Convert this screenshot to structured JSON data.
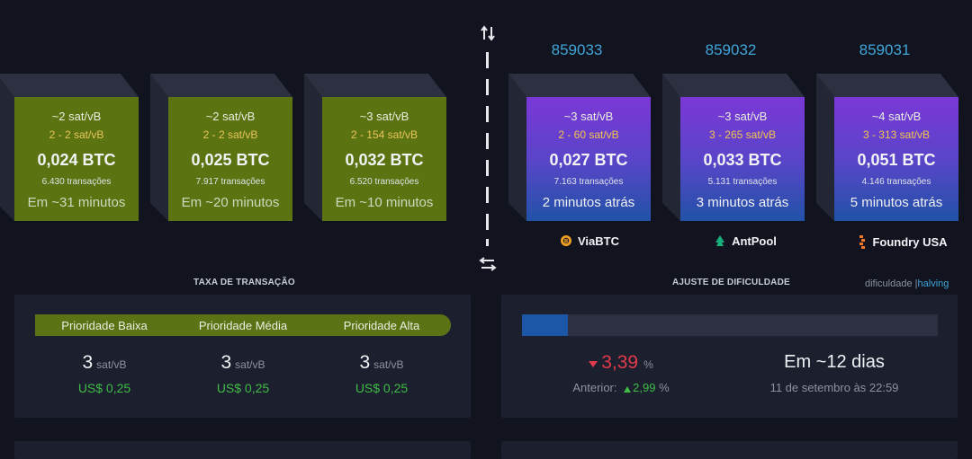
{
  "toolbar": {
    "swap_top_icon": "up-down-arrows-icon",
    "swap_bottom_icon": "left-right-arrows-icon"
  },
  "mempool_blocks": [
    {
      "fee_median": "~2 sat/vB",
      "fee_range": "2 - 2 sat/vB",
      "total": "0,024 BTC",
      "tx_count": "6.430 transações",
      "eta": "Em ~31 minutos"
    },
    {
      "fee_median": "~2 sat/vB",
      "fee_range": "2 - 2 sat/vB",
      "total": "0,025 BTC",
      "tx_count": "7.917 transações",
      "eta": "Em ~20 minutos"
    },
    {
      "fee_median": "~3 sat/vB",
      "fee_range": "2 - 154 sat/vB",
      "total": "0,032 BTC",
      "tx_count": "6.520 transações",
      "eta": "Em ~10 minutos"
    }
  ],
  "mined_blocks": [
    {
      "height": "859033",
      "fee_median": "~3 sat/vB",
      "fee_range": "2 - 60 sat/vB",
      "total": "0,027 BTC",
      "tx_count": "7.163 transações",
      "time": "2 minutos atrás",
      "pool": "ViaBTC",
      "pool_icon": "viabtc-logo-icon"
    },
    {
      "height": "859032",
      "fee_median": "~3 sat/vB",
      "fee_range": "3 - 265 sat/vB",
      "total": "0,033 BTC",
      "tx_count": "5.131 transações",
      "time": "3 minutos atrás",
      "pool": "AntPool",
      "pool_icon": "antpool-logo-icon"
    },
    {
      "height": "859031",
      "fee_median": "~4 sat/vB",
      "fee_range": "3 - 313 sat/vB",
      "total": "0,051 BTC",
      "tx_count": "4.146 transações",
      "time": "5 minutos atrás",
      "pool": "Foundry USA",
      "pool_icon": "foundry-logo-icon"
    }
  ],
  "fees": {
    "title": "TAXA DE TRANSAÇÃO",
    "unit": "sat/vB",
    "levels": [
      {
        "label": "Prioridade Baixa",
        "value": "3",
        "usd": "US$ 0,25"
      },
      {
        "label": "Prioridade Média",
        "value": "3",
        "usd": "US$ 0,25"
      },
      {
        "label": "Prioridade Alta",
        "value": "3",
        "usd": "US$ 0,25"
      }
    ]
  },
  "difficulty": {
    "title": "AJUSTE DE DIFICULDADE",
    "toggle_a": "dificuldade",
    "toggle_sep": "|",
    "toggle_b": "halving",
    "progress_fraction": 0.11,
    "change": "3,39",
    "change_unit": "%",
    "previous_label": "Anterior:",
    "previous_value": "2,99",
    "previous_unit": "%",
    "eta": "Em ~12 dias",
    "date": "11 de setembro às 22:59",
    "colors": {
      "down": "#e03a4a",
      "up": "#3fbb46",
      "accent": "#41a5d8"
    }
  }
}
